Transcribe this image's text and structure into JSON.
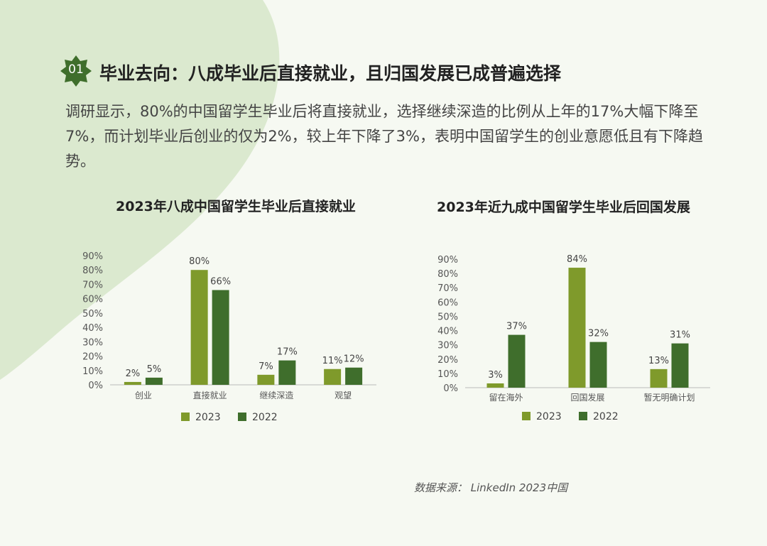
{
  "header": {
    "badge": "01",
    "title": "毕业去向：八成毕业后直接就业，且归国发展已成普遍选择"
  },
  "paragraph": "调研显示，80%的中国留学生毕业后将直接就业，选择继续深造的比例从上年的17%大幅下降至7%，而计划毕业后创业的仅为2%，较上年下降了3%，表明中国留学生的创业意愿低且有下降趋势。",
  "source": "数据来源：  LinkedIn 2023中国",
  "colors": {
    "c2023": "#7f9a2b",
    "c2022": "#3f6e2c",
    "accent": "#3f6e2c",
    "blob": "#dbe9cf"
  },
  "chart_data": [
    {
      "type": "bar",
      "title": "2023年八成中国留学生毕业后直接就业",
      "categories": [
        "创业",
        "直接就业",
        "继续深造",
        "观望"
      ],
      "series": [
        {
          "name": "2023",
          "values": [
            2,
            80,
            7,
            11
          ]
        },
        {
          "name": "2022",
          "values": [
            5,
            66,
            17,
            12
          ]
        }
      ],
      "ylim": [
        0,
        90
      ],
      "yticks": [
        "0%",
        "10%",
        "20%",
        "30%",
        "40%",
        "50%",
        "60%",
        "70%",
        "80%",
        "90%"
      ],
      "legend": "bottom"
    },
    {
      "type": "bar",
      "title": "2023年近九成中国留学生毕业后回国发展",
      "categories": [
        "留在海外",
        "回国发展",
        "暂无明确计划"
      ],
      "series": [
        {
          "name": "2023",
          "values": [
            3,
            84,
            13
          ]
        },
        {
          "name": "2022",
          "values": [
            37,
            32,
            31
          ]
        }
      ],
      "ylim": [
        0,
        90
      ],
      "yticks": [
        "0%",
        "10%",
        "20%",
        "30%",
        "40%",
        "50%",
        "60%",
        "70%",
        "80%",
        "90%"
      ],
      "legend": "bottom"
    }
  ]
}
